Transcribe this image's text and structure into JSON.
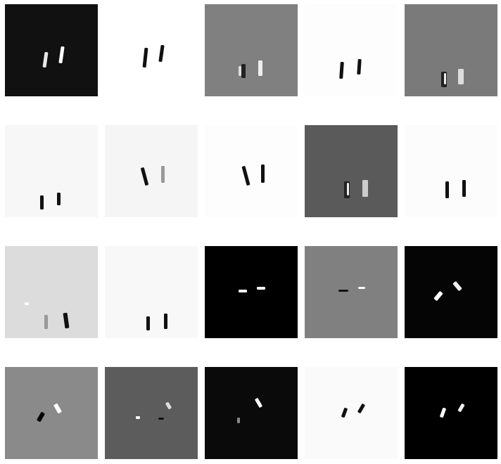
{
  "tiles": [
    {
      "background": "#111111"
    },
    {
      "background": "#ffffff"
    },
    {
      "background": "#808080"
    },
    {
      "background": "#fdfdfd"
    },
    {
      "background": "#7a7a7a"
    },
    {
      "background": "#f7f7f7"
    },
    {
      "background": "#f5f5f5"
    },
    {
      "background": "#fdfdfd"
    },
    {
      "background": "#5a5a5a"
    },
    {
      "background": "#fcfcfc"
    },
    {
      "background": "#dcdcdc"
    },
    {
      "background": "#f8f8f8"
    },
    {
      "background": "#000000"
    },
    {
      "background": "#808080"
    },
    {
      "background": "#050505"
    },
    {
      "background": "#8a8a8a"
    },
    {
      "background": "#5c5c5c"
    },
    {
      "background": "#0a0a0a"
    },
    {
      "background": "#fafafa"
    },
    {
      "background": "#000000"
    }
  ]
}
